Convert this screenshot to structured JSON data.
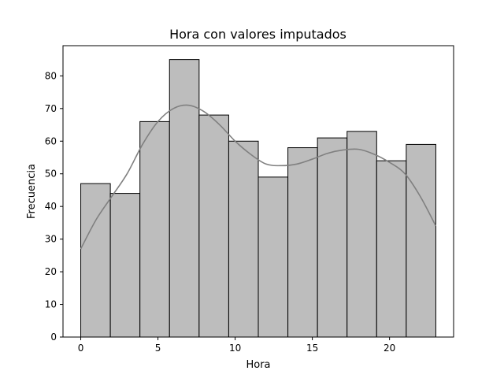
{
  "chart_data": {
    "type": "bar",
    "title": "Hora con valores imputados",
    "xlabel": "Hora",
    "ylabel": "Frecuencia",
    "bin_width": 1.9167,
    "bins": [
      {
        "start": 0.0,
        "end": 1.9167,
        "count": 47
      },
      {
        "start": 1.9167,
        "end": 3.8333,
        "count": 44
      },
      {
        "start": 3.8333,
        "end": 5.75,
        "count": 66
      },
      {
        "start": 5.75,
        "end": 7.6667,
        "count": 85
      },
      {
        "start": 7.6667,
        "end": 9.5833,
        "count": 68
      },
      {
        "start": 9.5833,
        "end": 11.5,
        "count": 60
      },
      {
        "start": 11.5,
        "end": 13.4167,
        "count": 49
      },
      {
        "start": 13.4167,
        "end": 15.3333,
        "count": 58
      },
      {
        "start": 15.3333,
        "end": 17.25,
        "count": 61
      },
      {
        "start": 17.25,
        "end": 19.1667,
        "count": 63
      },
      {
        "start": 19.1667,
        "end": 21.0833,
        "count": 54
      },
      {
        "start": 21.0833,
        "end": 23.0,
        "count": 59
      }
    ],
    "kde": {
      "x": [
        0,
        1,
        2,
        3,
        4,
        5,
        6,
        7,
        8,
        9,
        10,
        11,
        12,
        13,
        14,
        15,
        16,
        17,
        18,
        19,
        20,
        21,
        22,
        23
      ],
      "y": [
        27,
        36,
        43,
        50,
        59,
        66,
        70,
        71,
        69,
        65,
        60,
        56,
        53,
        52.5,
        53,
        54.5,
        56.3,
        57.3,
        57.5,
        56,
        53.5,
        50,
        43,
        34
      ]
    },
    "xlim": [
      -1.15,
      24.15
    ],
    "ylim": [
      0,
      89.25
    ],
    "xticks": [
      0,
      5,
      10,
      15,
      20
    ],
    "yticks": [
      0,
      10,
      20,
      30,
      40,
      50,
      60,
      70,
      80
    ],
    "grid": false,
    "colors": {
      "bar_fill": "#bdbdbd",
      "bar_edge": "#000000",
      "kde_line": "#808080"
    }
  }
}
